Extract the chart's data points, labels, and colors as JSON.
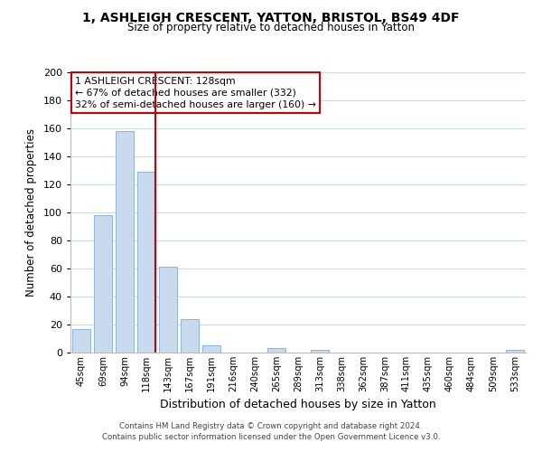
{
  "title_line1": "1, ASHLEIGH CRESCENT, YATTON, BRISTOL, BS49 4DF",
  "title_line2": "Size of property relative to detached houses in Yatton",
  "xlabel": "Distribution of detached houses by size in Yatton",
  "ylabel": "Number of detached properties",
  "bar_labels": [
    "45sqm",
    "69sqm",
    "94sqm",
    "118sqm",
    "143sqm",
    "167sqm",
    "191sqm",
    "216sqm",
    "240sqm",
    "265sqm",
    "289sqm",
    "313sqm",
    "338sqm",
    "362sqm",
    "387sqm",
    "411sqm",
    "435sqm",
    "460sqm",
    "484sqm",
    "509sqm",
    "533sqm"
  ],
  "bar_values": [
    17,
    98,
    158,
    129,
    61,
    24,
    5,
    0,
    0,
    3,
    0,
    2,
    0,
    0,
    0,
    0,
    0,
    0,
    0,
    0,
    2
  ],
  "bar_color": "#c9d9ee",
  "bar_edge_color": "#8db4d8",
  "vline_color": "#cc0000",
  "annotation_title": "1 ASHLEIGH CRESCENT: 128sqm",
  "annotation_line1": "← 67% of detached houses are smaller (332)",
  "annotation_line2": "32% of semi-detached houses are larger (160) →",
  "annotation_box_color": "#ffffff",
  "annotation_box_edge": "#cc0000",
  "ylim": [
    0,
    200
  ],
  "yticks": [
    0,
    20,
    40,
    60,
    80,
    100,
    120,
    140,
    160,
    180,
    200
  ],
  "footer_line1": "Contains HM Land Registry data © Crown copyright and database right 2024.",
  "footer_line2": "Contains public sector information licensed under the Open Government Licence v3.0.",
  "background_color": "#ffffff",
  "grid_color": "#c8d8e8"
}
